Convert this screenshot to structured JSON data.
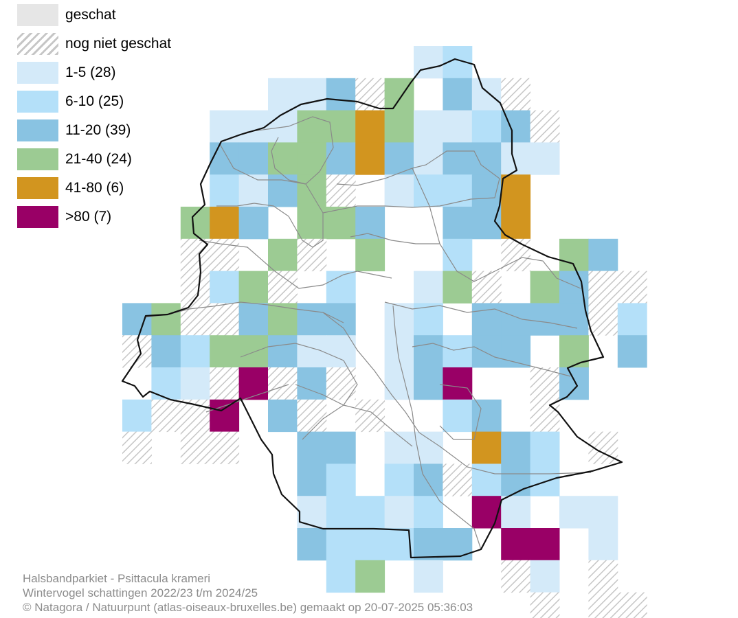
{
  "legend": [
    {
      "label": "geschat",
      "color": "#e6e6e6",
      "style": "solid"
    },
    {
      "label": "nog niet geschat",
      "color": "#bdbdbd",
      "style": "hatched"
    },
    {
      "label": "1-5 (28)",
      "color": "#d4eaf9",
      "style": "solid"
    },
    {
      "label": "6-10 (25)",
      "color": "#b4e0f9",
      "style": "solid"
    },
    {
      "label": "11-20 (39)",
      "color": "#89c3e2",
      "style": "solid"
    },
    {
      "label": "21-40 (24)",
      "color": "#9ccb93",
      "style": "solid"
    },
    {
      "label": "41-80 (6)",
      "color": "#d2951f",
      "style": "solid"
    },
    {
      "label": ">80 (7)",
      "color": "#990066",
      "style": "solid"
    }
  ],
  "footer": {
    "species": "Halsbandparkiet - Psittacula krameri",
    "survey": "Wintervogel schattingen 2022/23 t/m 2024/25",
    "credits": "© Natagora / Natuurpunt (atlas-oiseaux-bruxelles.be) gemaakt op 20-07-2025 05:36:03"
  }
}
